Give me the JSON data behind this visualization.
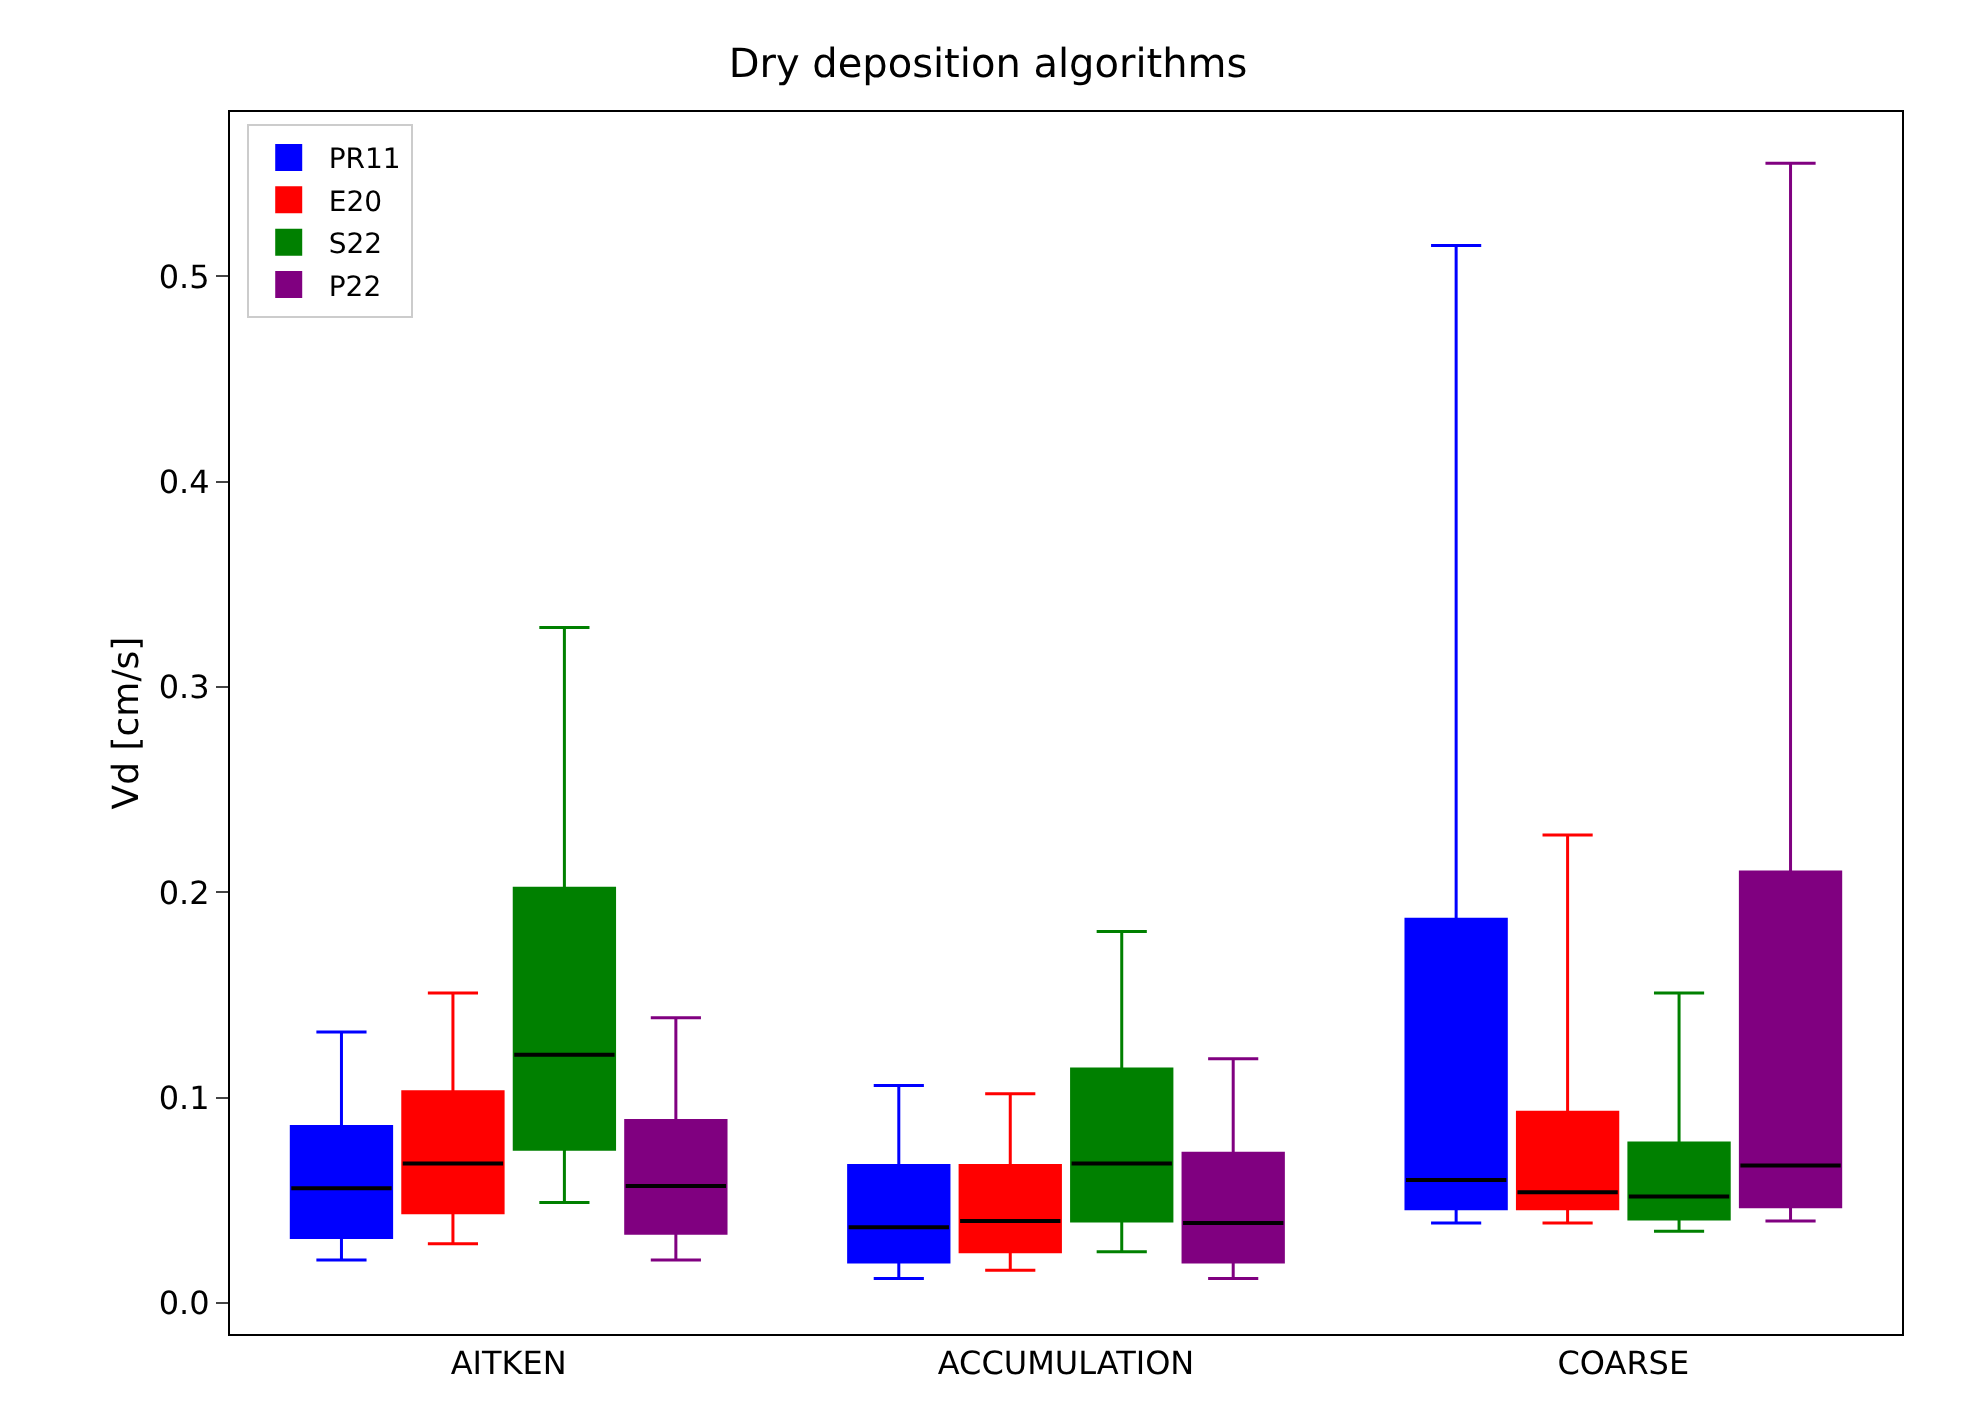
{
  "chart_data": {
    "type": "box",
    "title": "Dry deposition algorithms",
    "ylabel": "Vd [cm/s]",
    "categories": [
      "AITKEN",
      "ACCUMULATION",
      "COARSE"
    ],
    "ylim": [
      -0.015,
      0.58
    ],
    "yticks": [
      {
        "value": 0,
        "label": "0.0"
      },
      0.1,
      0.2,
      0.3,
      0.4,
      0.5
    ],
    "grid": false,
    "legend": "top left",
    "series": [
      {
        "name": "PR11",
        "color": "#0000ff",
        "boxes": [
          {
            "low": 0.021,
            "q1": 0.032,
            "median": 0.056,
            "q3": 0.086,
            "high": 0.132
          },
          {
            "low": 0.012,
            "q1": 0.02,
            "median": 0.037,
            "q3": 0.067,
            "high": 0.106
          },
          {
            "low": 0.039,
            "q1": 0.046,
            "median": 0.06,
            "q3": 0.187,
            "high": 0.515
          }
        ]
      },
      {
        "name": "E20",
        "color": "#ff0000",
        "boxes": [
          {
            "low": 0.029,
            "q1": 0.044,
            "median": 0.068,
            "q3": 0.103,
            "high": 0.151
          },
          {
            "low": 0.016,
            "q1": 0.025,
            "median": 0.04,
            "q3": 0.067,
            "high": 0.102
          },
          {
            "low": 0.039,
            "q1": 0.046,
            "median": 0.054,
            "q3": 0.093,
            "high": 0.228
          }
        ]
      },
      {
        "name": "S22",
        "color": "#008000",
        "boxes": [
          {
            "low": 0.049,
            "q1": 0.075,
            "median": 0.121,
            "q3": 0.202,
            "high": 0.329
          },
          {
            "low": 0.025,
            "q1": 0.04,
            "median": 0.068,
            "q3": 0.114,
            "high": 0.181
          },
          {
            "low": 0.035,
            "q1": 0.041,
            "median": 0.052,
            "q3": 0.078,
            "high": 0.151
          }
        ]
      },
      {
        "name": "P22",
        "color": "#800080",
        "boxes": [
          {
            "low": 0.021,
            "q1": 0.034,
            "median": 0.057,
            "q3": 0.089,
            "high": 0.139
          },
          {
            "low": 0.012,
            "q1": 0.02,
            "median": 0.039,
            "q3": 0.073,
            "high": 0.119
          },
          {
            "low": 0.04,
            "q1": 0.047,
            "median": 0.067,
            "q3": 0.21,
            "high": 0.555
          }
        ]
      }
    ]
  }
}
